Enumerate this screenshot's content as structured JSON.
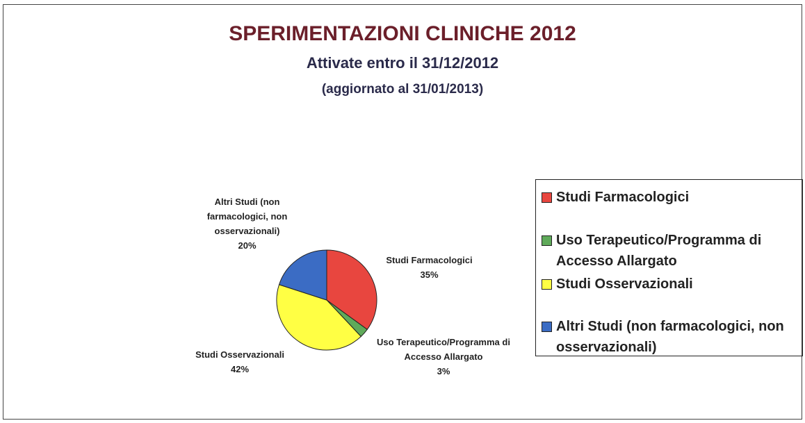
{
  "chart_data": {
    "type": "pie",
    "title": "SPERIMENTAZIONI  CLINICHE 2012",
    "subtitle": "Attivate entro il 31/12/2012",
    "note": "(aggiornato al 31/01/2013)",
    "categories": [
      "Studi Farmacologici",
      "Uso Terapeutico/Programma di Accesso Allargato",
      "Studi Osservazionali",
      "Altri Studi (non farmacologici, non osservazionali)"
    ],
    "values": [
      35,
      3,
      42,
      20
    ],
    "value_labels": [
      "35%",
      "3%",
      "42%",
      "20%"
    ],
    "colors": [
      "#e8463f",
      "#5faa5a",
      "#ffff44",
      "#3b6cc4"
    ],
    "legend": "right"
  }
}
